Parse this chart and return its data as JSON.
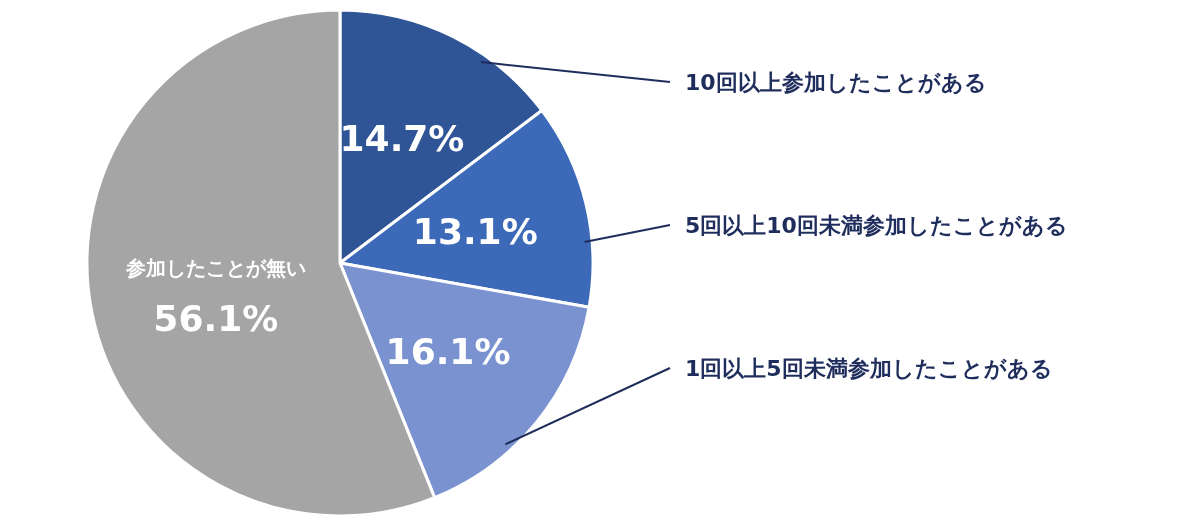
{
  "chart_data": {
    "type": "pie",
    "categories": [
      "10回以上参加したことがある",
      "5回以上10回未満参加したことがある",
      "1回以上5回未満参加したことがある",
      "参加したことが無い"
    ],
    "values": [
      14.7,
      13.1,
      16.1,
      56.1
    ],
    "colors": [
      "#2f5597",
      "#3d6ab8",
      "#7a93d0",
      "#a5a5a5"
    ],
    "value_labels": [
      "14.7%",
      "13.1%",
      "16.1%",
      "56.1%"
    ],
    "legend": false
  }
}
